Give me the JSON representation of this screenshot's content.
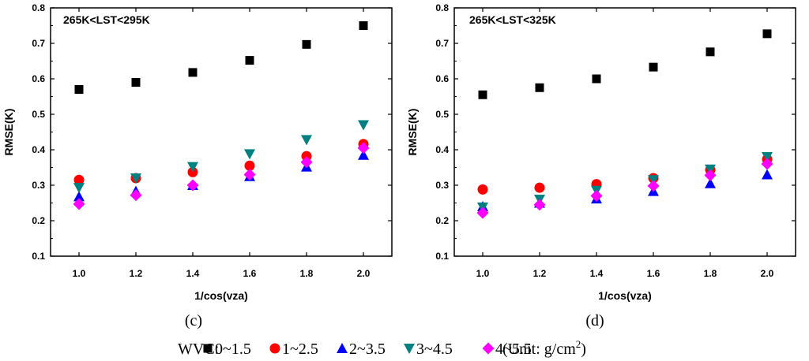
{
  "chart_data": [
    {
      "type": "scatter",
      "panel_label": "(c)",
      "title": "265K<LST<295K",
      "xlabel": "1/cos(vza)",
      "ylabel": "RMSE(K)",
      "xlim": [
        0.9,
        2.1
      ],
      "ylim": [
        0.1,
        0.8
      ],
      "xticks": [
        "1.0",
        "1.2",
        "1.4",
        "1.6",
        "1.8",
        "2.0"
      ],
      "yticks": [
        "0.1",
        "0.2",
        "0.3",
        "0.4",
        "0.5",
        "0.6",
        "0.7",
        "0.8"
      ],
      "x": [
        1.0,
        1.2,
        1.4,
        1.6,
        1.8,
        2.0
      ],
      "series": [
        {
          "name": "0~1.5",
          "marker": "square",
          "color": "#000000",
          "values": [
            0.57,
            0.59,
            0.618,
            0.652,
            0.697,
            0.75
          ]
        },
        {
          "name": "1~2.5",
          "marker": "circle",
          "color": "#ff0000",
          "values": [
            0.315,
            0.32,
            0.337,
            0.355,
            0.382,
            0.416
          ]
        },
        {
          "name": "2~3.5",
          "marker": "triangle-up",
          "color": "#0000ff",
          "values": [
            0.268,
            0.283,
            0.3,
            0.325,
            0.352,
            0.385
          ]
        },
        {
          "name": "3~4.5",
          "marker": "triangle-down",
          "color": "#008080",
          "values": [
            0.293,
            0.32,
            0.352,
            0.388,
            0.428,
            0.47
          ]
        },
        {
          "name": "4~5.5",
          "marker": "diamond",
          "color": "#ff00ff",
          "values": [
            0.247,
            0.272,
            0.3,
            0.33,
            0.365,
            0.405
          ]
        }
      ]
    },
    {
      "type": "scatter",
      "panel_label": "(d)",
      "title": "265K<LST<325K",
      "xlabel": "1/cos(vza)",
      "ylabel": "RMSE(K)",
      "xlim": [
        0.9,
        2.1
      ],
      "ylim": [
        0.1,
        0.8
      ],
      "xticks": [
        "1.0",
        "1.2",
        "1.4",
        "1.6",
        "1.8",
        "2.0"
      ],
      "yticks": [
        "0.1",
        "0.2",
        "0.3",
        "0.4",
        "0.5",
        "0.6",
        "0.7",
        "0.8"
      ],
      "x": [
        1.0,
        1.2,
        1.4,
        1.6,
        1.8,
        2.0
      ],
      "series": [
        {
          "name": "0~1.5",
          "marker": "square",
          "color": "#000000",
          "values": [
            0.555,
            0.575,
            0.6,
            0.633,
            0.676,
            0.727
          ]
        },
        {
          "name": "1~2.5",
          "marker": "circle",
          "color": "#ff0000",
          "values": [
            0.288,
            0.293,
            0.303,
            0.32,
            0.343,
            0.373
          ]
        },
        {
          "name": "2~3.5",
          "marker": "triangle-up",
          "color": "#0000ff",
          "values": [
            0.24,
            0.25,
            0.262,
            0.283,
            0.305,
            0.33
          ]
        },
        {
          "name": "3~4.5",
          "marker": "triangle-down",
          "color": "#008080",
          "values": [
            0.238,
            0.26,
            0.285,
            0.315,
            0.345,
            0.38
          ]
        },
        {
          "name": "4~5.5",
          "marker": "diamond",
          "color": "#ff00ff",
          "values": [
            0.222,
            0.245,
            0.27,
            0.298,
            0.328,
            0.36
          ]
        }
      ]
    }
  ],
  "legend": {
    "prefix": "WVC:",
    "unit_text": "(Unit: g/cm",
    "unit_sup": "2",
    "unit_close": ")"
  }
}
